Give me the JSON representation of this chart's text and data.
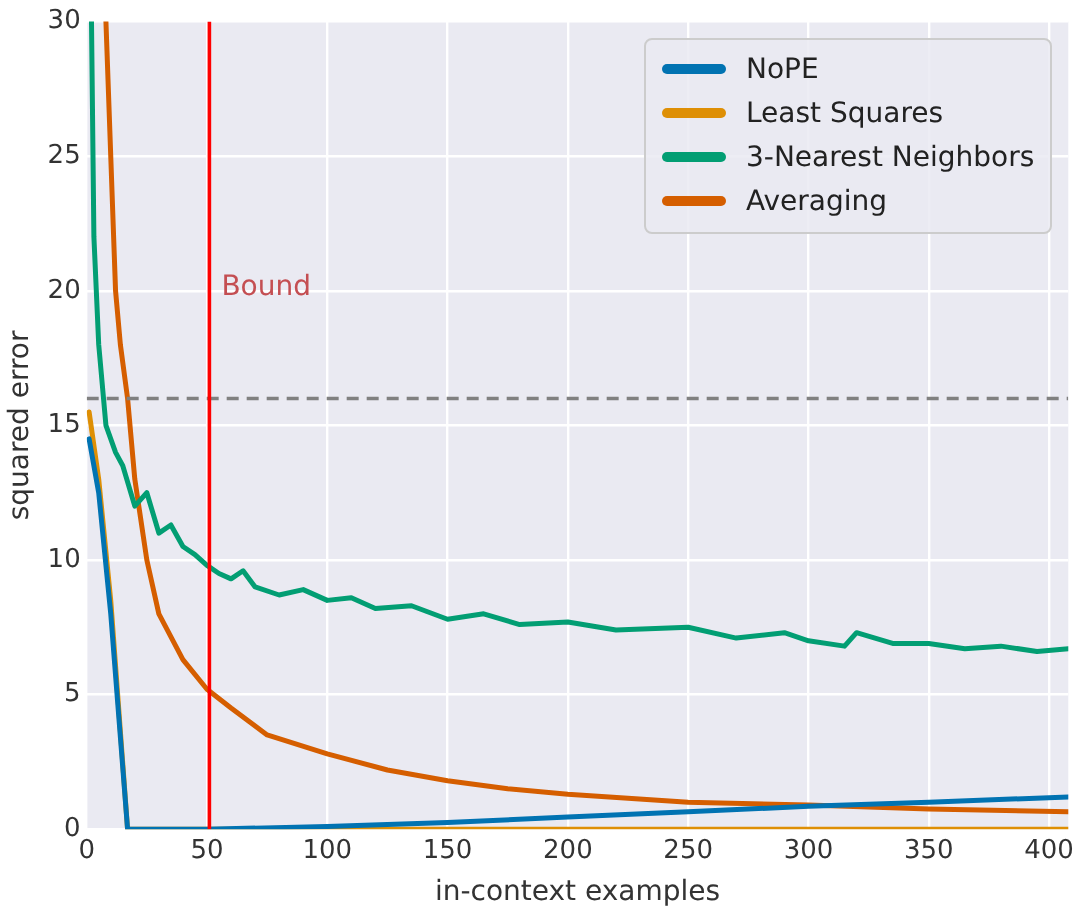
{
  "chart_data": {
    "type": "line",
    "xlabel": "in-context examples",
    "ylabel": "squared error",
    "xlim": [
      0,
      408
    ],
    "ylim": [
      0,
      30
    ],
    "xticks": [
      0,
      50,
      100,
      150,
      200,
      250,
      300,
      350,
      400
    ],
    "yticks": [
      0,
      5,
      10,
      15,
      20,
      25,
      30
    ],
    "grid": true,
    "legend": "top right",
    "line_style": "solid",
    "marker": "none",
    "series": [
      {
        "name": "NoPE",
        "color": "#0173b2",
        "x": [
          1,
          5,
          10,
          17,
          50,
          100,
          150,
          200,
          250,
          300,
          350,
          408
        ],
        "values": [
          14.5,
          12.5,
          8,
          0,
          0,
          0.1,
          0.25,
          0.45,
          0.65,
          0.85,
          1,
          1.2
        ]
      },
      {
        "name": "Least Squares",
        "color": "#de8f05",
        "x": [
          1,
          5,
          10,
          17,
          50,
          100,
          200,
          300,
          408
        ],
        "values": [
          15.5,
          13,
          8.5,
          0,
          0,
          0,
          0,
          0,
          0
        ]
      },
      {
        "name": "3-Nearest Neighbors",
        "color": "#029e73",
        "x": [
          2,
          3,
          5,
          8,
          12,
          15,
          20,
          25,
          30,
          35,
          40,
          45,
          50,
          55,
          60,
          65,
          70,
          80,
          90,
          100,
          110,
          120,
          135,
          150,
          165,
          180,
          200,
          220,
          250,
          270,
          290,
          300,
          315,
          320,
          335,
          350,
          365,
          380,
          395,
          408
        ],
        "values": [
          30,
          22,
          18,
          15,
          14,
          13.5,
          12,
          12.5,
          11,
          11.3,
          10.5,
          10.2,
          9.8,
          9.5,
          9.3,
          9.6,
          9,
          8.7,
          8.9,
          8.5,
          8.6,
          8.2,
          8.3,
          7.8,
          8,
          7.6,
          7.7,
          7.4,
          7.5,
          7.1,
          7.3,
          7,
          6.8,
          7.3,
          6.9,
          6.9,
          6.7,
          6.8,
          6.6,
          6.7
        ]
      },
      {
        "name": "Averaging",
        "color": "#d55e00",
        "x": [
          8,
          10,
          12,
          14,
          17,
          20,
          25,
          30,
          40,
          50,
          60,
          75,
          100,
          125,
          150,
          175,
          200,
          250,
          300,
          350,
          408
        ],
        "values": [
          30,
          25,
          20,
          18,
          16,
          13,
          10,
          8,
          6.3,
          5.2,
          4.5,
          3.5,
          2.8,
          2.2,
          1.8,
          1.5,
          1.3,
          1,
          0.9,
          0.75,
          0.65
        ]
      }
    ],
    "ref_lines": [
      {
        "axis": "y",
        "value": 16,
        "color": "#808080",
        "line_style": "dashed"
      },
      {
        "axis": "x",
        "value": 51,
        "label": "Bound",
        "color": "#ff0000",
        "line_style": "solid"
      }
    ]
  }
}
